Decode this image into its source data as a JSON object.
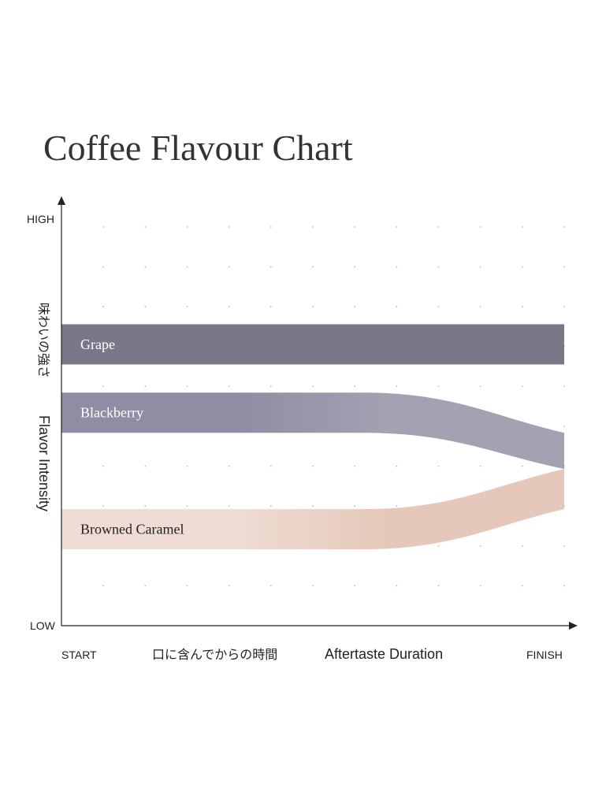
{
  "chart_data": {
    "type": "area",
    "title": "Coffee Flavour Chart",
    "y_axis": {
      "high_label": "HIGH",
      "low_label": "LOW",
      "label_jp": "味わいの強さ",
      "label_en": "Flavor Intensity"
    },
    "x_axis": {
      "start_label": "START",
      "finish_label": "FINISH",
      "label_jp": "口に含んでからの時間",
      "label_en": "Aftertaste Duration"
    },
    "x": [
      0,
      0.6,
      1
    ],
    "series": [
      {
        "name": "Grape",
        "top": [
          0.75,
          0.75,
          0.75
        ],
        "bottom": [
          0.65,
          0.65,
          0.65
        ],
        "color_start": "#7b7789",
        "color_end": "#7b7789",
        "label_color": "#ffffff"
      },
      {
        "name": "Blackberry",
        "top": [
          0.58,
          0.58,
          0.48
        ],
        "bottom": [
          0.48,
          0.48,
          0.39
        ],
        "color_start": "#8e8da4",
        "color_end": "#a3a2b2",
        "label_color": "#ffffff"
      },
      {
        "name": "Browned Caramel",
        "top": [
          0.29,
          0.29,
          0.39
        ],
        "bottom": [
          0.19,
          0.19,
          0.29
        ],
        "color_start": "#efdcd4",
        "color_end": "#e5c8b9",
        "label_color": "#222222"
      }
    ],
    "grid": "dots"
  }
}
